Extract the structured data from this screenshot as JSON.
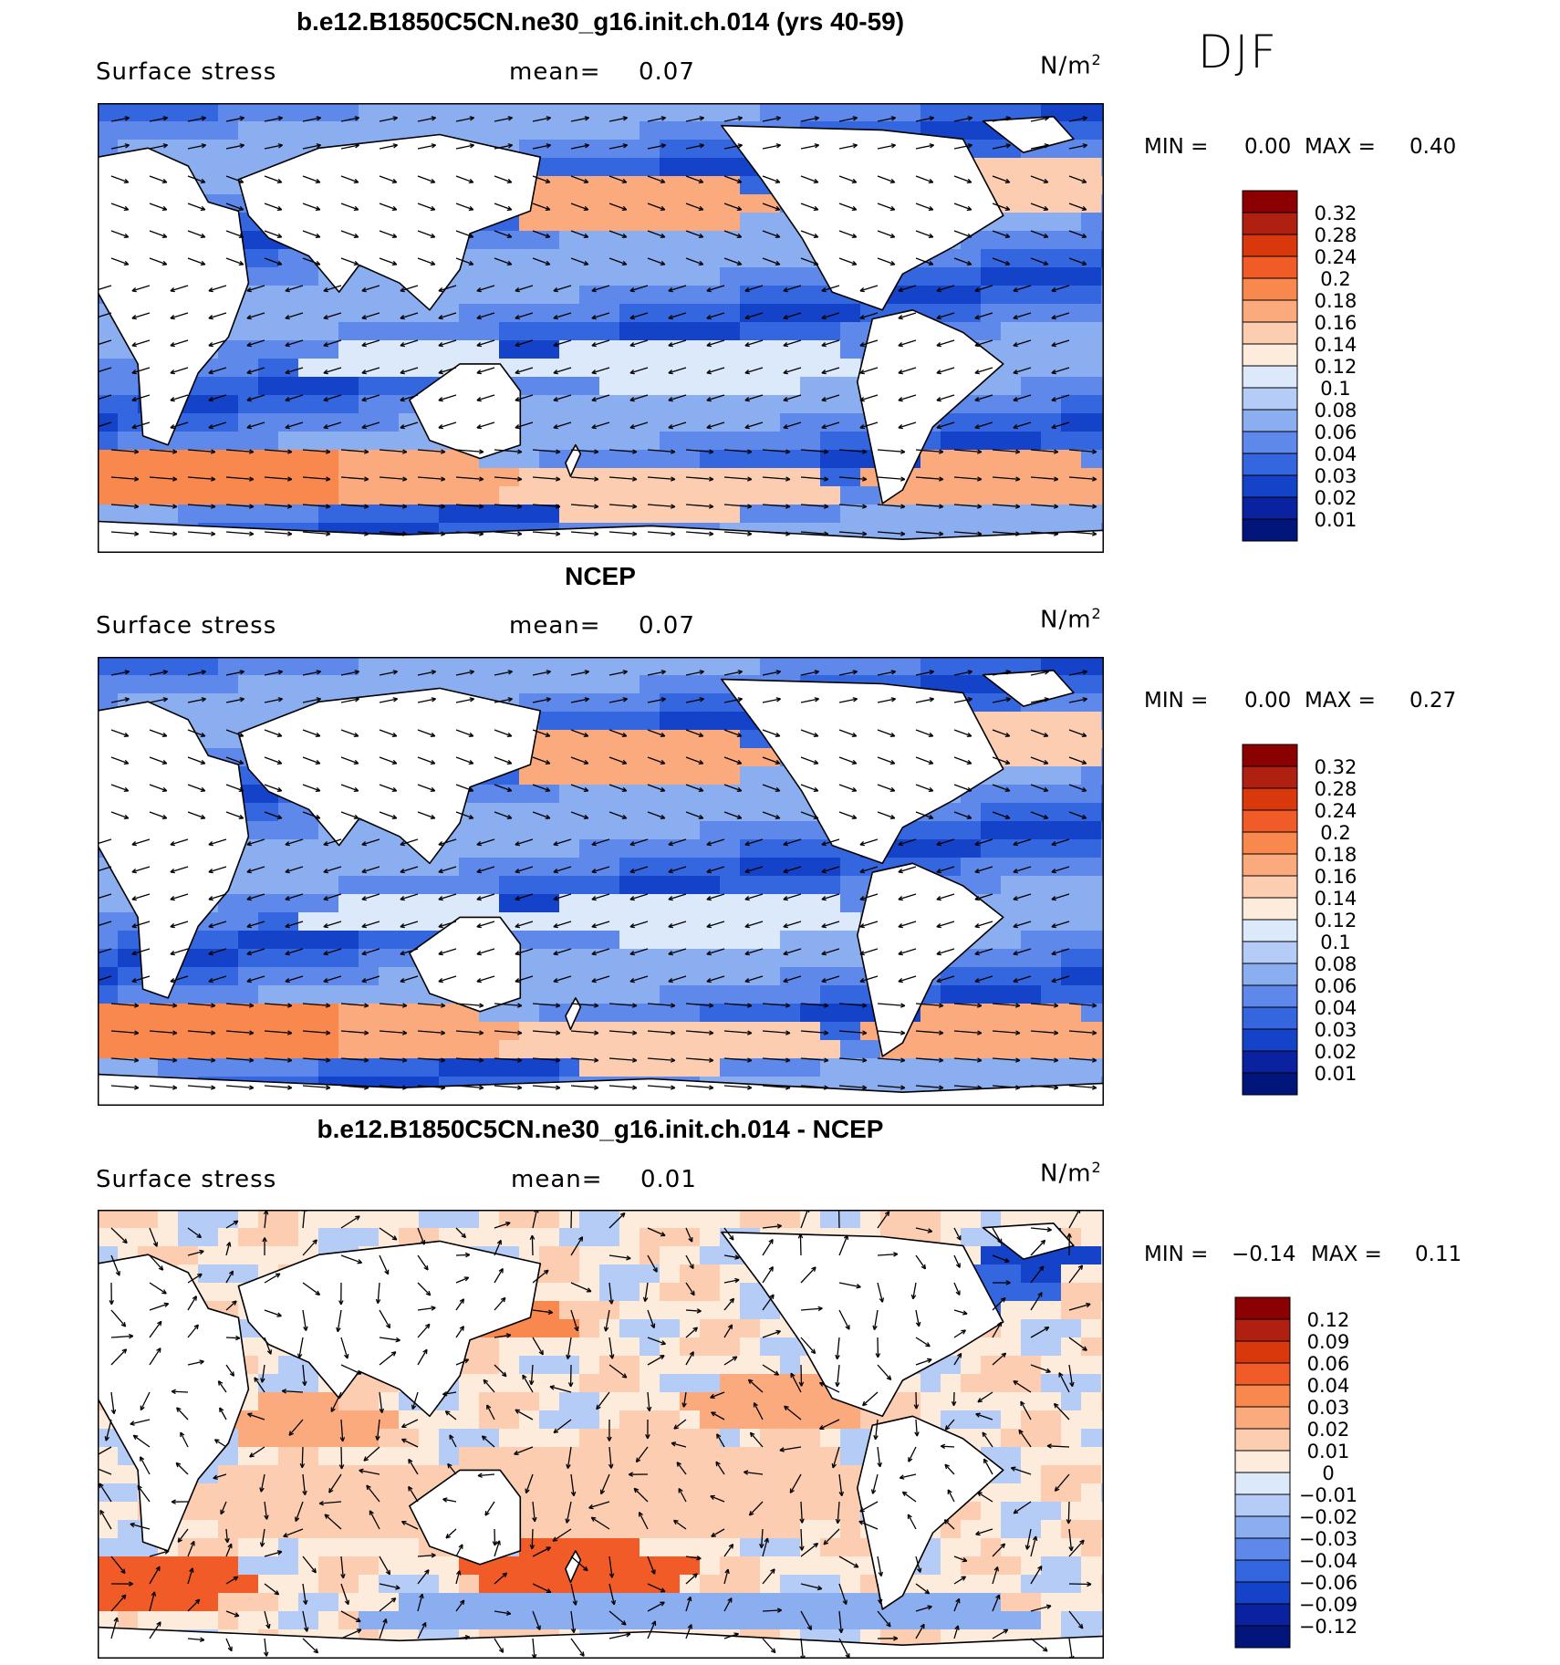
{
  "season": "DJF",
  "panels": [
    {
      "title": "b.e12.B1850C5CN.ne30_g16.init.ch.014 (yrs 40-59)",
      "variable": "Surface stress",
      "mean_label": "mean=",
      "mean": "0.07",
      "units": "N/m",
      "units_exp": "2",
      "min_label": "MIN =",
      "min": "0.00",
      "max_label": "MAX =",
      "max": "0.40"
    },
    {
      "title": "NCEP",
      "variable": "Surface stress",
      "mean_label": "mean=",
      "mean": "0.07",
      "units": "N/m",
      "units_exp": "2",
      "min_label": "MIN =",
      "min": "0.00",
      "max_label": "MAX =",
      "max": "0.27"
    },
    {
      "title": "b.e12.B1850C5CN.ne30_g16.init.ch.014 - NCEP",
      "variable": "Surface stress",
      "mean_label": "mean=",
      "mean": "0.01",
      "units": "N/m",
      "units_exp": "2",
      "min_label": "MIN =",
      "min": "−0.14",
      "max_label": "MAX =",
      "max": "0.11"
    }
  ],
  "chart_data": [
    {
      "type": "heatmap",
      "colorbar_levels": [
        "0.32",
        "0.28",
        "0.24",
        "0.2",
        "0.18",
        "0.16",
        "0.14",
        "0.12",
        "0.1",
        "0.08",
        "0.06",
        "0.04",
        "0.03",
        "0.02",
        "0.01"
      ],
      "colorbar_colors": [
        "#8b0000",
        "#b02010",
        "#d8380c",
        "#f05b28",
        "#f8884e",
        "#fbaa7e",
        "#fccdb0",
        "#fdebdc",
        "#dbe9fb",
        "#b5cdf6",
        "#8baef0",
        "#5e88ea",
        "#3466e0",
        "#1442c8",
        "#0a22a0",
        "#02157a"
      ]
    },
    {
      "type": "heatmap",
      "colorbar_levels": [
        "0.32",
        "0.28",
        "0.24",
        "0.2",
        "0.18",
        "0.16",
        "0.14",
        "0.12",
        "0.1",
        "0.08",
        "0.06",
        "0.04",
        "0.03",
        "0.02",
        "0.01"
      ],
      "colorbar_colors": [
        "#8b0000",
        "#b02010",
        "#d8380c",
        "#f05b28",
        "#f8884e",
        "#fbaa7e",
        "#fccdb0",
        "#fdebdc",
        "#dbe9fb",
        "#b5cdf6",
        "#8baef0",
        "#5e88ea",
        "#3466e0",
        "#1442c8",
        "#0a22a0",
        "#02157a"
      ]
    },
    {
      "type": "heatmap",
      "colorbar_levels": [
        "0.12",
        "0.09",
        "0.06",
        "0.04",
        "0.03",
        "0.02",
        "0.01",
        "0",
        "−0.01",
        "−0.02",
        "−0.03",
        "−0.04",
        "−0.06",
        "−0.09",
        "−0.12"
      ],
      "colorbar_colors": [
        "#8b0000",
        "#b02010",
        "#d8380c",
        "#f05b28",
        "#f8884e",
        "#fbaa7e",
        "#fccdb0",
        "#fdebdc",
        "#dbe9fb",
        "#b5cdf6",
        "#8baef0",
        "#5e88ea",
        "#3466e0",
        "#1442c8",
        "#0a22a0",
        "#02157a"
      ]
    }
  ]
}
